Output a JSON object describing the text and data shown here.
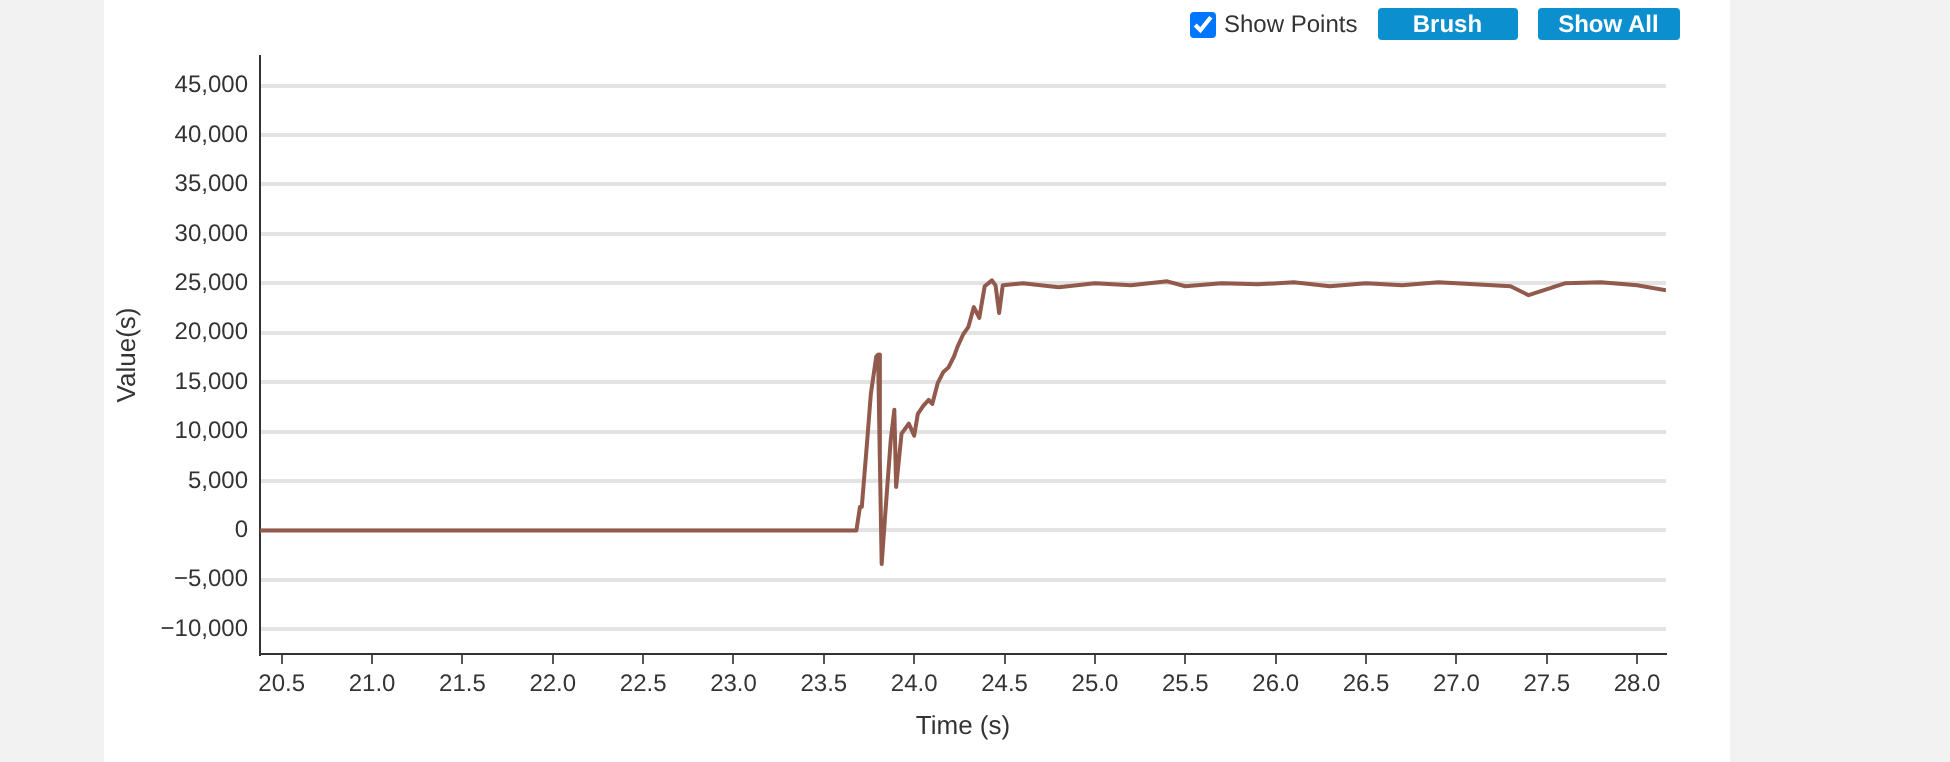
{
  "chart_data": {
    "type": "line",
    "xlabel": "Time (s)",
    "ylabel": "Value(s)",
    "x": [
      20.38,
      21.0,
      22.0,
      23.0,
      23.68,
      23.7,
      23.71,
      23.74,
      23.76,
      23.79,
      23.8,
      23.81,
      23.82,
      23.84,
      23.87,
      23.89,
      23.9,
      23.93,
      23.97,
      24.0,
      24.02,
      24.05,
      24.08,
      24.1,
      24.13,
      24.16,
      24.19,
      24.22,
      24.24,
      24.27,
      24.3,
      24.33,
      24.36,
      24.39,
      24.43,
      24.45,
      24.47,
      24.49,
      24.6,
      24.8,
      25.0,
      25.2,
      25.4,
      25.5,
      25.7,
      25.9,
      26.1,
      26.3,
      26.5,
      26.7,
      26.9,
      27.1,
      27.3,
      27.4,
      27.6,
      27.8,
      28.0,
      28.16
    ],
    "series": [
      {
        "color": "#915a4c",
        "values": [
          0,
          0,
          0,
          0,
          0,
          2400,
          2400,
          9100,
          13800,
          17600,
          17800,
          7100,
          -3400,
          1700,
          9100,
          12200,
          4400,
          9800,
          10800,
          9600,
          11800,
          12600,
          13200,
          12800,
          14900,
          16000,
          16500,
          17600,
          18600,
          19800,
          20600,
          22600,
          21500,
          24700,
          25300,
          24800,
          22000,
          24800,
          25000,
          24600,
          25000,
          24800,
          25200,
          24700,
          25000,
          24900,
          25100,
          24700,
          25000,
          24800,
          25100,
          24900,
          24700,
          23800,
          25000,
          25100,
          24800,
          24300
        ]
      }
    ],
    "xlim": [
      20.38,
      28.16
    ],
    "xticks": [
      20.5,
      {
        "value": 21,
        "label": "21.0"
      },
      21.5,
      {
        "value": 22,
        "label": "22.0"
      },
      22.5,
      {
        "value": 23,
        "label": "23.0"
      },
      23.5,
      {
        "value": 24,
        "label": "24.0"
      },
      24.5,
      {
        "value": 25,
        "label": "25.0"
      },
      25.5,
      {
        "value": 26,
        "label": "26.0"
      },
      26.5,
      {
        "value": 27,
        "label": "27.0"
      },
      27.5,
      {
        "value": 28,
        "label": "28.0"
      }
    ],
    "ylim": [
      -12500,
      48000
    ],
    "yticks": [
      {
        "value": -10000,
        "label": "−10,000"
      },
      {
        "value": -5000,
        "label": "−5,000"
      },
      0,
      {
        "value": 5000,
        "label": "5,000"
      },
      {
        "value": 10000,
        "label": "10,000"
      },
      {
        "value": 15000,
        "label": "15,000"
      },
      {
        "value": 20000,
        "label": "20,000"
      },
      {
        "value": 25000,
        "label": "25,000"
      },
      {
        "value": 30000,
        "label": "30,000"
      },
      {
        "value": 35000,
        "label": "35,000"
      },
      {
        "value": 40000,
        "label": "40,000"
      },
      {
        "value": 45000,
        "label": "45,000"
      }
    ],
    "grid": "y",
    "legend": false,
    "annotations": [
      "Show Points",
      "Brush",
      "Show All"
    ]
  }
}
